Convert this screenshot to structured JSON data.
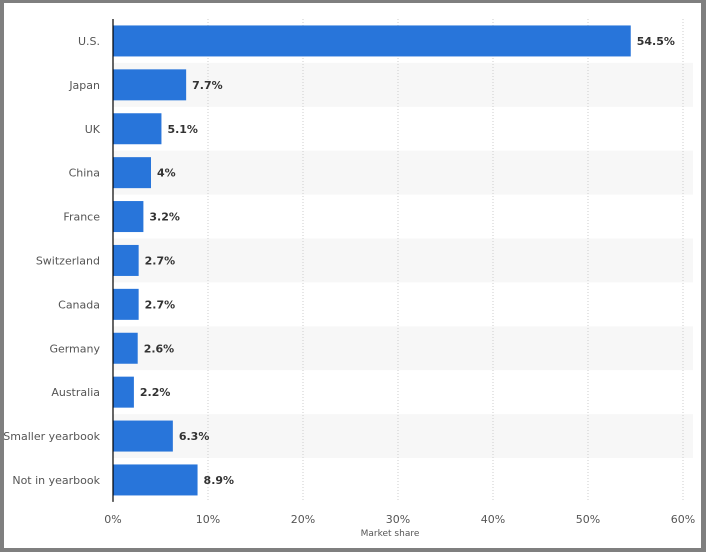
{
  "chart_data": {
    "type": "bar",
    "orientation": "horizontal",
    "categories": [
      "U.S.",
      "Japan",
      "UK",
      "China",
      "France",
      "Switzerland",
      "Canada",
      "Germany",
      "Australia",
      "Smaller yearbook",
      "Not in yearbook"
    ],
    "values": [
      54.5,
      7.7,
      5.1,
      4,
      3.2,
      2.7,
      2.7,
      2.6,
      2.2,
      6.3,
      8.9
    ],
    "data_labels": [
      "54.5%",
      "7.7%",
      "5.1%",
      "4%",
      "3.2%",
      "2.7%",
      "2.7%",
      "2.6%",
      "2.2%",
      "6.3%",
      "8.9%"
    ],
    "xlabel": "Market share",
    "ylabel": "",
    "xlim": [
      0,
      60
    ],
    "xticks": [
      0,
      10,
      20,
      30,
      40,
      50,
      60
    ],
    "xtick_labels": [
      "0%",
      "10%",
      "20%",
      "30%",
      "40%",
      "50%",
      "60%"
    ],
    "grid": true,
    "colors": {
      "bar": "#2875da",
      "alt_row": "#f7f7f7"
    }
  }
}
